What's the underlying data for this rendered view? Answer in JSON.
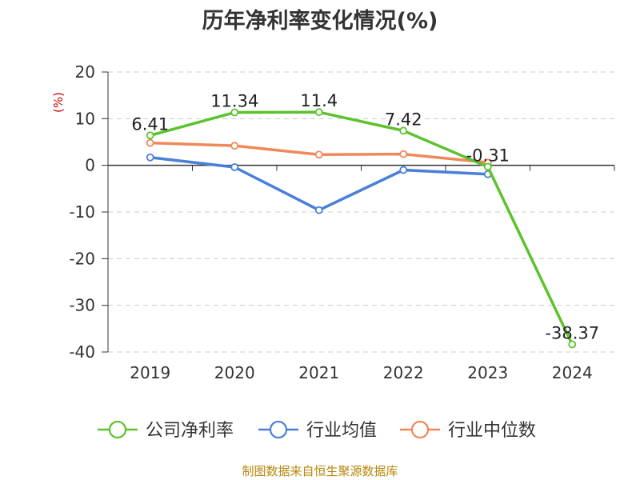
{
  "chart_data": {
    "type": "line",
    "title": "历年净利率变化情况(%)",
    "ylabel": "(%)",
    "xlabel": "",
    "categories": [
      "2019",
      "2020",
      "2021",
      "2022",
      "2023",
      "2024"
    ],
    "ylim": [
      -40,
      20
    ],
    "yticks": [
      20,
      10,
      0,
      -10,
      -20,
      -30,
      -40
    ],
    "grid": true,
    "legend_position": "bottom",
    "series": [
      {
        "name": "公司净利率",
        "color": "#5cc22e",
        "values": [
          6.41,
          11.34,
          11.4,
          7.42,
          -0.31,
          -38.37
        ],
        "labels": [
          "6.41",
          "11.34",
          "11.4",
          "7.42",
          "-0.31",
          "-38.37"
        ]
      },
      {
        "name": "行业均值",
        "color": "#4a7fd8",
        "values": [
          1.7,
          -0.4,
          -9.6,
          -1.0,
          -1.9,
          null
        ]
      },
      {
        "name": "行业中位数",
        "color": "#f0885a",
        "values": [
          4.8,
          4.2,
          2.3,
          2.4,
          0.6,
          null
        ]
      }
    ]
  },
  "footer": {
    "source": "制图数据来自恒生聚源数据库"
  }
}
